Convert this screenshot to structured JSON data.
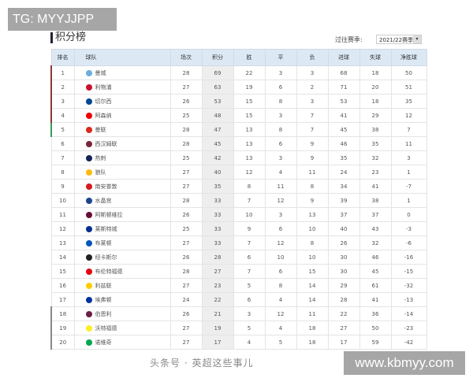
{
  "overlay_top": "TG: MYYJJPP",
  "overlay_bottom": "www.kbmyy.com",
  "watermark": "头条号 · 英超这些事儿",
  "title": "积分榜",
  "season_label": "过往赛季:",
  "season_value": "2021/22赛季",
  "headers": [
    "排名",
    "球队",
    "场次",
    "积分",
    "胜",
    "平",
    "负",
    "进球",
    "失球",
    "净胜球"
  ],
  "zone_colors": {
    "champions": "#8b3a3a",
    "europa": "#3a9a5a",
    "relegation": "#888888"
  },
  "rows": [
    [
      "1",
      "曼城",
      "28",
      "69",
      "22",
      "3",
      "3",
      "68",
      "18",
      "50"
    ],
    [
      "2",
      "利物浦",
      "27",
      "63",
      "19",
      "6",
      "2",
      "71",
      "20",
      "51"
    ],
    [
      "3",
      "切尔西",
      "26",
      "53",
      "15",
      "8",
      "3",
      "53",
      "18",
      "35"
    ],
    [
      "4",
      "阿森纳",
      "25",
      "48",
      "15",
      "3",
      "7",
      "41",
      "29",
      "12"
    ],
    [
      "5",
      "曼联",
      "28",
      "47",
      "13",
      "8",
      "7",
      "45",
      "38",
      "7"
    ],
    [
      "6",
      "西汉姆联",
      "28",
      "45",
      "13",
      "6",
      "9",
      "46",
      "35",
      "11"
    ],
    [
      "7",
      "热刺",
      "25",
      "42",
      "13",
      "3",
      "9",
      "35",
      "32",
      "3"
    ],
    [
      "8",
      "狼队",
      "27",
      "40",
      "12",
      "4",
      "11",
      "24",
      "23",
      "1"
    ],
    [
      "9",
      "南安普敦",
      "27",
      "35",
      "8",
      "11",
      "8",
      "34",
      "41",
      "-7"
    ],
    [
      "10",
      "水晶宫",
      "28",
      "33",
      "7",
      "12",
      "9",
      "39",
      "38",
      "1"
    ],
    [
      "11",
      "阿斯顿维拉",
      "26",
      "33",
      "10",
      "3",
      "13",
      "37",
      "37",
      "0"
    ],
    [
      "12",
      "莱斯特城",
      "25",
      "33",
      "9",
      "6",
      "10",
      "40",
      "43",
      "-3"
    ],
    [
      "13",
      "布莱顿",
      "27",
      "33",
      "7",
      "12",
      "8",
      "26",
      "32",
      "-6"
    ],
    [
      "14",
      "纽卡斯尔",
      "26",
      "28",
      "6",
      "10",
      "10",
      "30",
      "46",
      "-16"
    ],
    [
      "15",
      "布伦特福德",
      "28",
      "27",
      "7",
      "6",
      "15",
      "30",
      "45",
      "-15"
    ],
    [
      "16",
      "利兹联",
      "27",
      "23",
      "5",
      "8",
      "14",
      "29",
      "61",
      "-32"
    ],
    [
      "17",
      "埃弗顿",
      "24",
      "22",
      "6",
      "4",
      "14",
      "28",
      "41",
      "-13"
    ],
    [
      "18",
      "伯恩利",
      "26",
      "21",
      "3",
      "12",
      "11",
      "22",
      "36",
      "-14"
    ],
    [
      "19",
      "沃特福德",
      "27",
      "19",
      "5",
      "4",
      "18",
      "27",
      "50",
      "-23"
    ],
    [
      "20",
      "诺维奇",
      "27",
      "17",
      "4",
      "5",
      "18",
      "17",
      "59",
      "-42"
    ]
  ],
  "crest_colors": [
    "#6caddf",
    "#c8102e",
    "#034694",
    "#ef0107",
    "#da291c",
    "#7a263a",
    "#132257",
    "#fdb913",
    "#d71920",
    "#1b458f",
    "#670e36",
    "#003090",
    "#0057b8",
    "#241f20",
    "#e30613",
    "#ffcd00",
    "#003399",
    "#6c1d45",
    "#fbee23",
    "#00a650"
  ]
}
